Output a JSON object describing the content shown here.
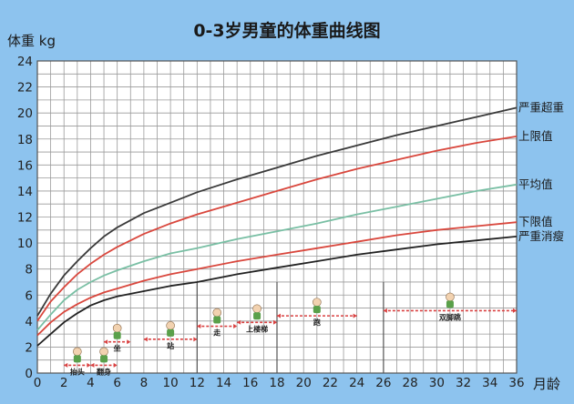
{
  "chart_data": {
    "type": "line",
    "title": "0-3岁男童的体重曲线图",
    "ylabel": "体重 kg",
    "xlabel": "月龄",
    "xlim": [
      0,
      36
    ],
    "ylim": [
      0,
      24
    ],
    "x_ticks": [
      0,
      2,
      4,
      6,
      8,
      10,
      12,
      14,
      16,
      18,
      20,
      22,
      24,
      26,
      28,
      30,
      32,
      34,
      36
    ],
    "y_ticks": [
      0,
      2,
      4,
      6,
      8,
      10,
      12,
      14,
      16,
      18,
      20,
      22,
      24
    ],
    "grid": true,
    "series": [
      {
        "name": "严重超重",
        "color": "#3a3a3a",
        "x": [
          0,
          1,
          2,
          3,
          4,
          5,
          6,
          8,
          10,
          12,
          15,
          18,
          21,
          24,
          27,
          30,
          33,
          36
        ],
        "y": [
          4.4,
          6.1,
          7.5,
          8.6,
          9.6,
          10.5,
          11.2,
          12.3,
          13.1,
          13.9,
          14.9,
          15.8,
          16.7,
          17.5,
          18.3,
          19.0,
          19.7,
          20.4
        ]
      },
      {
        "name": "上限值",
        "color": "#d9473d",
        "x": [
          0,
          1,
          2,
          3,
          4,
          5,
          6,
          8,
          10,
          12,
          15,
          18,
          21,
          24,
          27,
          30,
          33,
          36
        ],
        "y": [
          4.0,
          5.5,
          6.6,
          7.6,
          8.4,
          9.1,
          9.7,
          10.7,
          11.5,
          12.2,
          13.1,
          14.0,
          14.9,
          15.7,
          16.4,
          17.1,
          17.7,
          18.2
        ]
      },
      {
        "name": "平均值",
        "color": "#79bfa4",
        "x": [
          0,
          1,
          2,
          3,
          4,
          5,
          6,
          8,
          10,
          12,
          15,
          18,
          21,
          24,
          27,
          30,
          33,
          36
        ],
        "y": [
          3.3,
          4.5,
          5.6,
          6.4,
          7.0,
          7.5,
          7.9,
          8.6,
          9.2,
          9.6,
          10.3,
          10.9,
          11.5,
          12.2,
          12.8,
          13.4,
          14.0,
          14.5
        ]
      },
      {
        "name": "下限值",
        "color": "#d9473d",
        "x": [
          0,
          1,
          2,
          3,
          4,
          5,
          6,
          8,
          10,
          12,
          15,
          18,
          21,
          24,
          27,
          30,
          33,
          36
        ],
        "y": [
          2.9,
          3.9,
          4.7,
          5.3,
          5.8,
          6.2,
          6.5,
          7.1,
          7.6,
          8.0,
          8.6,
          9.1,
          9.6,
          10.1,
          10.6,
          11.0,
          11.3,
          11.6
        ]
      },
      {
        "name": "严重消瘦",
        "color": "#222222",
        "x": [
          0,
          1,
          2,
          3,
          4,
          5,
          6,
          8,
          10,
          12,
          15,
          18,
          21,
          24,
          27,
          30,
          33,
          36
        ],
        "y": [
          2.1,
          3.0,
          3.9,
          4.6,
          5.2,
          5.6,
          5.9,
          6.3,
          6.7,
          7.0,
          7.6,
          8.1,
          8.6,
          9.1,
          9.5,
          9.9,
          10.2,
          10.5
        ]
      }
    ],
    "milestones": [
      {
        "label": "抬头",
        "x_start": 2,
        "x_end": 4,
        "y": 0.6
      },
      {
        "label": "翻身",
        "x_start": 4,
        "x_end": 6,
        "y": 0.6
      },
      {
        "label": "坐",
        "x_start": 5,
        "x_end": 7,
        "y": 2.4
      },
      {
        "label": "站",
        "x_start": 8,
        "x_end": 12,
        "y": 2.6
      },
      {
        "label": "走",
        "x_start": 12,
        "x_end": 15,
        "y": 3.6
      },
      {
        "label": "上楼梯",
        "x_start": 15,
        "x_end": 18,
        "y": 3.9
      },
      {
        "label": "跑",
        "x_start": 18,
        "x_end": 24,
        "y": 4.4
      },
      {
        "label": "双脚跳",
        "x_start": 26,
        "x_end": 36,
        "y": 4.8
      }
    ],
    "vertical_dividers": [
      12,
      18,
      26
    ]
  }
}
